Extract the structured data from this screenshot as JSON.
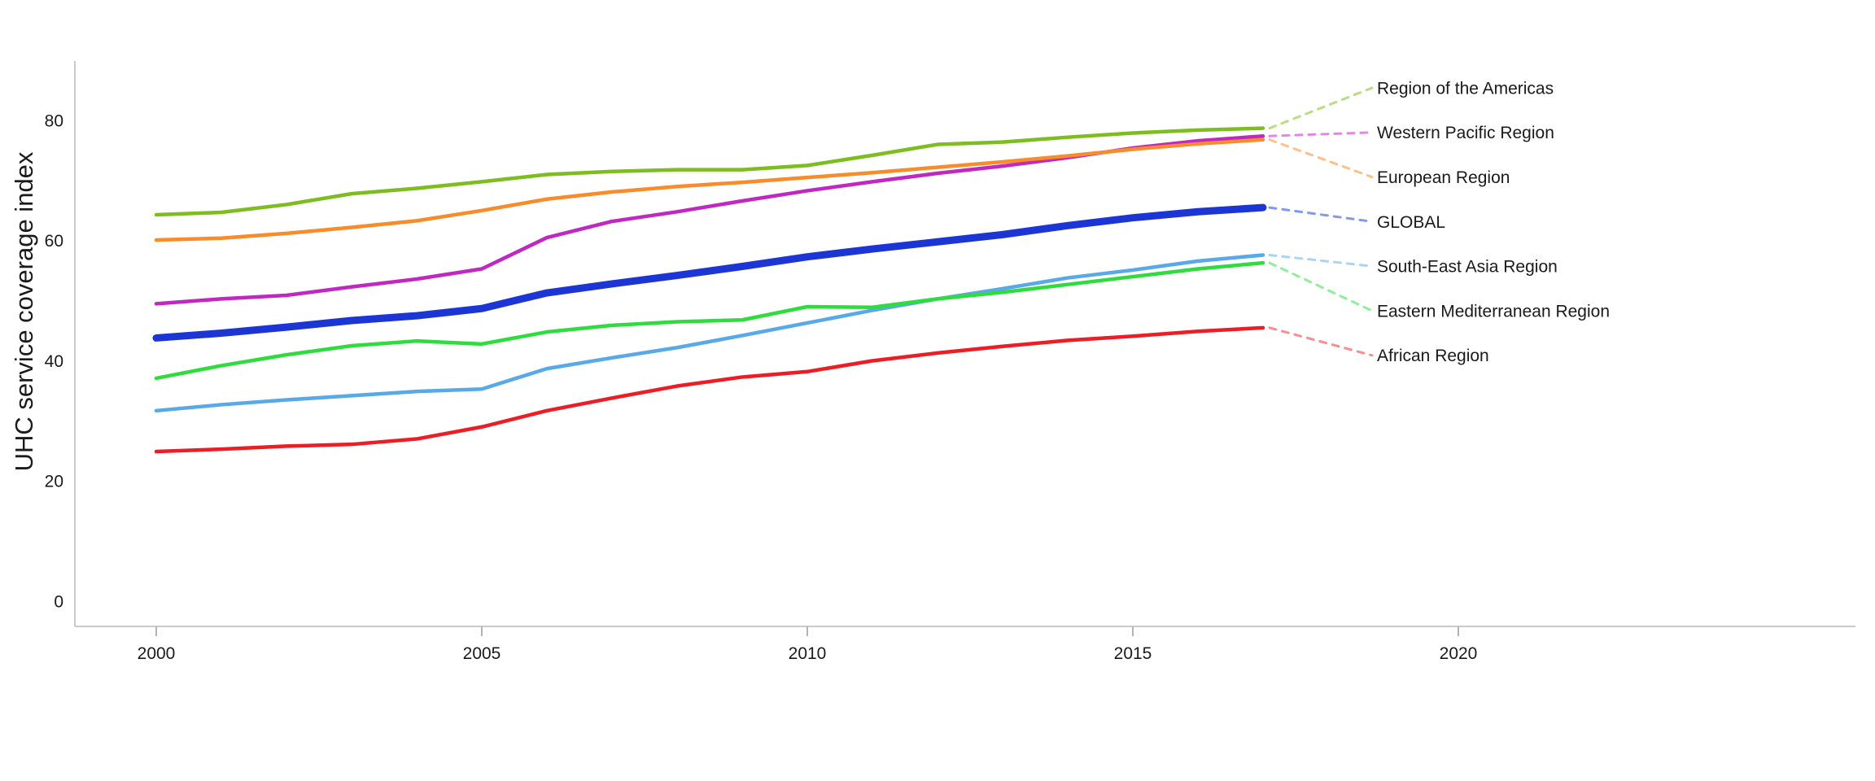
{
  "page": {
    "background": "#ffffff"
  },
  "chart_data": {
    "type": "line",
    "title": "",
    "xlabel": "",
    "ylabel": "UHC service coverage index",
    "grid": false,
    "legend_position": "right of line endpoints, connected by dashed leader lines",
    "xlim": [
      1998.75,
      2026.1
    ],
    "ylim": [
      0,
      90
    ],
    "x_tick_values": [
      2000,
      2005,
      2010,
      2015,
      2020
    ],
    "x_tick_labels": [
      "2000",
      "2005",
      "2010",
      "2015",
      "2020"
    ],
    "y_tick_values": [
      0,
      20,
      40,
      60,
      80
    ],
    "y_tick_labels": [
      "0",
      "20",
      "40",
      "60",
      "80"
    ],
    "x": [
      2000,
      2001,
      2002,
      2003,
      2004,
      2005,
      2006,
      2007,
      2008,
      2009,
      2010,
      2011,
      2012,
      2013,
      2014,
      2015,
      2016,
      2017
    ],
    "series": [
      {
        "name": "Region of the Americas",
        "color": "#7dbd20",
        "leader_color": "#b9dd85",
        "line_width": 4.5,
        "values": [
          64.3,
          64.7,
          66.0,
          67.8,
          68.7,
          69.8,
          71.0,
          71.5,
          71.8,
          71.8,
          72.5,
          74.2,
          76.0,
          76.4,
          77.2,
          77.9,
          78.4,
          78.7
        ]
      },
      {
        "name": "Western Pacific Region",
        "color": "#c128c1",
        "leader_color": "#e487e4",
        "line_width": 4.5,
        "values": [
          49.5,
          50.3,
          50.9,
          52.3,
          53.6,
          55.3,
          60.5,
          63.2,
          64.8,
          66.6,
          68.3,
          69.8,
          71.2,
          72.4,
          73.8,
          75.4,
          76.6,
          77.4
        ]
      },
      {
        "name": "European Region",
        "color": "#f88c2b",
        "leader_color": "#fbc08b",
        "line_width": 4.5,
        "values": [
          60.1,
          60.4,
          61.2,
          62.2,
          63.3,
          65.0,
          66.9,
          68.1,
          69.0,
          69.7,
          70.5,
          71.3,
          72.2,
          73.1,
          74.1,
          75.2,
          76.1,
          76.8
        ]
      },
      {
        "name": "GLOBAL",
        "color": "#1c36d6",
        "leader_color": "#8099e9",
        "line_width": 9,
        "values": [
          43.8,
          44.6,
          45.6,
          46.7,
          47.5,
          48.7,
          51.3,
          52.8,
          54.2,
          55.7,
          57.3,
          58.6,
          59.8,
          61.0,
          62.5,
          63.8,
          64.8,
          65.5
        ]
      },
      {
        "name": "South-East Asia Region",
        "color": "#57a9e8",
        "leader_color": "#a9d4f4",
        "line_width": 4.5,
        "values": [
          31.7,
          32.7,
          33.5,
          34.2,
          34.9,
          35.3,
          38.7,
          40.5,
          42.2,
          44.2,
          46.3,
          48.4,
          50.3,
          52.0,
          53.8,
          55.1,
          56.6,
          57.6
        ]
      },
      {
        "name": "Eastern Mediterranean Region",
        "color": "#2fdc3e",
        "leader_color": "#90ee9a",
        "line_width": 4.5,
        "values": [
          37.1,
          39.2,
          41.0,
          42.5,
          43.3,
          42.8,
          44.8,
          45.9,
          46.5,
          46.8,
          49.0,
          48.9,
          50.3,
          51.4,
          52.7,
          54.0,
          55.3,
          56.3
        ]
      },
      {
        "name": "African Region",
        "color": "#ec1d25",
        "leader_color": "#f68e92",
        "line_width": 4.5,
        "values": [
          24.9,
          25.3,
          25.8,
          26.1,
          27.0,
          29.0,
          31.7,
          33.8,
          35.8,
          37.3,
          38.2,
          40.0,
          41.3,
          42.4,
          43.4,
          44.1,
          44.9,
          45.5
        ]
      }
    ]
  }
}
